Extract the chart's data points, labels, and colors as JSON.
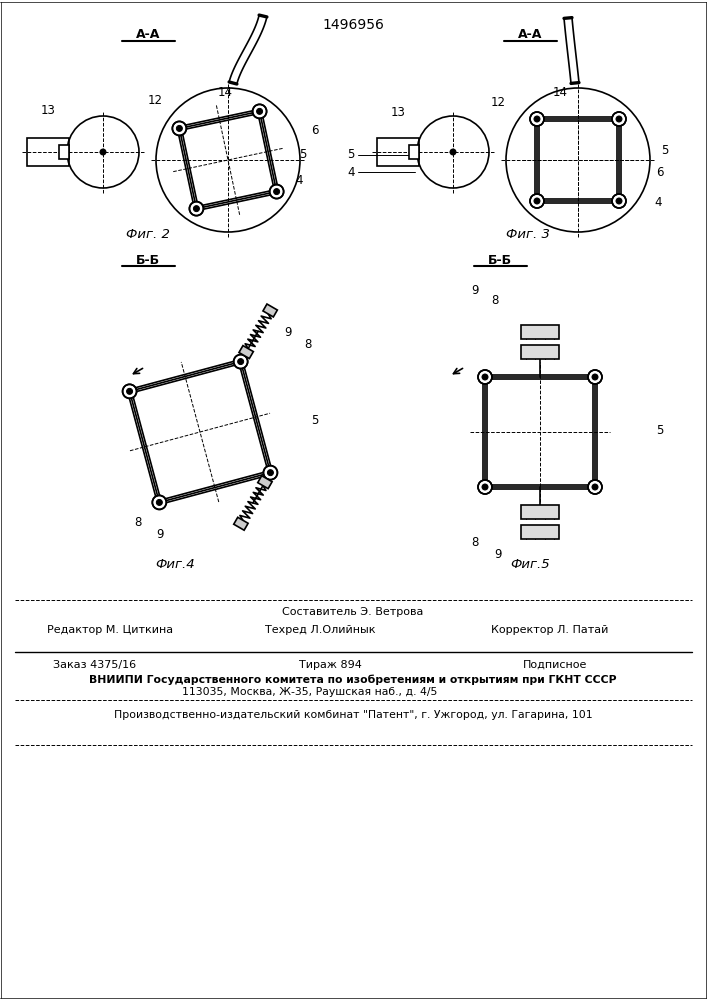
{
  "patent_number": "1496956",
  "background": "#ffffff",
  "fig2_label": "Фиг. 2",
  "fig3_label": "Фиг. 3",
  "fig4_label": "Фиг.4",
  "fig5_label": "Фиг.5",
  "section_aa_label": "А-А",
  "section_bb_label": "Б-Б",
  "footer_editor": "Редактор М. Циткина",
  "footer_compiler": "Составитель Э. Ветрова",
  "footer_techred": "Техред Л.Олийнык",
  "footer_corrector": "Корректор Л. Патай",
  "footer_order": "Заказ 4375/16",
  "footer_tirazh": "Тираж 894",
  "footer_podpisnoe": "Подписное",
  "footer_vniipи": "ВНИИПИ Государственного комитета по изобретениям и открытиям при ГКНТ СССР",
  "footer_addr": "113035, Москва, Ж-35, Раушская наб., д. 4/5",
  "footer_patent": "Производственно-издательский комбинат \"Патент\", г. Ужгород, ул. Гагарина, 101",
  "lc": "#000000",
  "lw": 1.2,
  "tlw": 0.7
}
